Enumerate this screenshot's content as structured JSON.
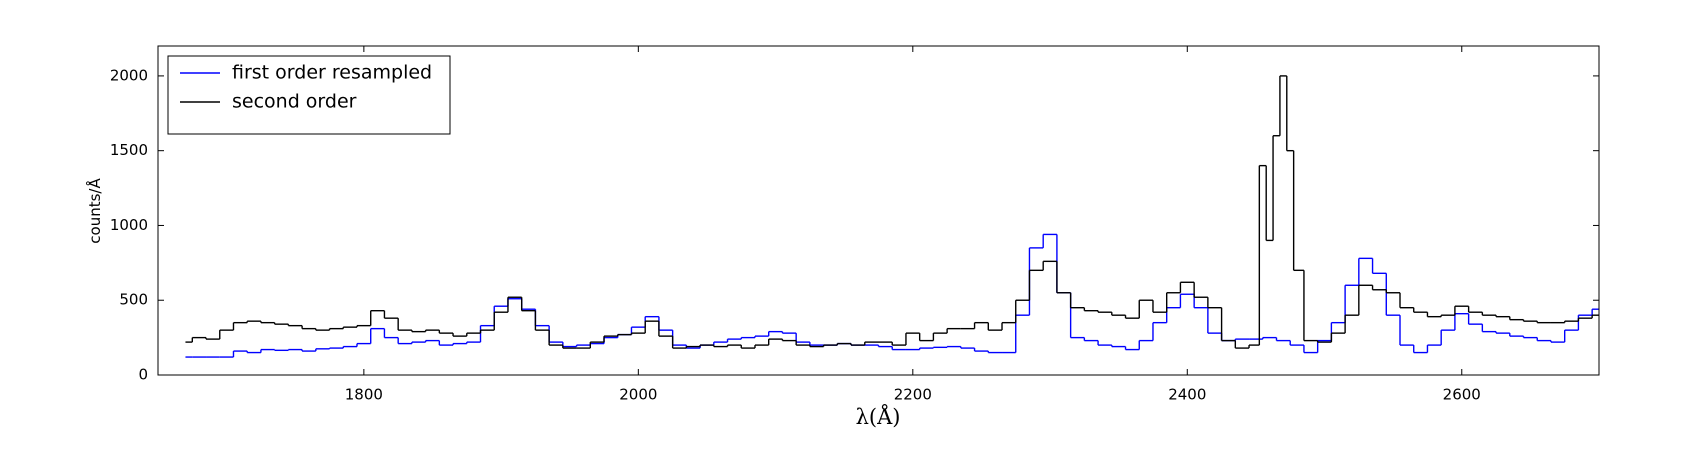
{
  "chart_data": {
    "type": "step",
    "xlabel": "λ(Å)",
    "ylabel": "counts/Å",
    "xlim": [
      1650,
      2700
    ],
    "ylim": [
      0,
      2200
    ],
    "xticks": [
      1800,
      2000,
      2200,
      2400,
      2600
    ],
    "yticks": [
      0,
      500,
      1000,
      1500,
      2000
    ],
    "legend": "upper left",
    "series": [
      {
        "name": "first order resampled",
        "color": "#0000ff",
        "x": [
          1670,
          1680,
          1690,
          1700,
          1710,
          1720,
          1730,
          1740,
          1750,
          1760,
          1770,
          1780,
          1790,
          1800,
          1810,
          1820,
          1830,
          1840,
          1850,
          1860,
          1870,
          1880,
          1890,
          1900,
          1910,
          1920,
          1930,
          1940,
          1950,
          1960,
          1970,
          1980,
          1990,
          2000,
          2010,
          2020,
          2030,
          2040,
          2050,
          2060,
          2070,
          2080,
          2090,
          2100,
          2110,
          2120,
          2130,
          2140,
          2150,
          2160,
          2170,
          2180,
          2190,
          2200,
          2210,
          2220,
          2230,
          2240,
          2250,
          2260,
          2270,
          2280,
          2290,
          2300,
          2310,
          2320,
          2330,
          2340,
          2350,
          2360,
          2370,
          2380,
          2390,
          2400,
          2410,
          2420,
          2430,
          2440,
          2450,
          2460,
          2470,
          2480,
          2490,
          2500,
          2510,
          2520,
          2530,
          2540,
          2550,
          2560,
          2570,
          2580,
          2590,
          2600,
          2610,
          2620,
          2630,
          2640,
          2650,
          2660,
          2670,
          2680,
          2690,
          2700
        ],
        "values": [
          120,
          120,
          120,
          120,
          160,
          150,
          170,
          165,
          170,
          160,
          175,
          180,
          190,
          210,
          310,
          250,
          210,
          220,
          230,
          200,
          210,
          220,
          330,
          460,
          510,
          440,
          330,
          220,
          190,
          200,
          210,
          250,
          270,
          320,
          390,
          300,
          200,
          180,
          200,
          220,
          240,
          250,
          260,
          290,
          280,
          220,
          200,
          200,
          210,
          200,
          200,
          190,
          170,
          170,
          180,
          185,
          190,
          180,
          160,
          150,
          150,
          400,
          850,
          940,
          550,
          250,
          230,
          200,
          190,
          170,
          230,
          350,
          450,
          540,
          450,
          280,
          230,
          240,
          240,
          250,
          230,
          200,
          150,
          230,
          350,
          600,
          780,
          680,
          400,
          200,
          150,
          200,
          300,
          410,
          340,
          290,
          280,
          260,
          250,
          230,
          220,
          300,
          400,
          440
        ]
      },
      {
        "name": "second order",
        "color": "#000000",
        "x": [
          1670,
          1680,
          1690,
          1700,
          1710,
          1720,
          1730,
          1740,
          1750,
          1760,
          1770,
          1780,
          1790,
          1800,
          1810,
          1820,
          1830,
          1840,
          1850,
          1860,
          1870,
          1880,
          1890,
          1900,
          1910,
          1920,
          1930,
          1940,
          1950,
          1960,
          1970,
          1980,
          1990,
          2000,
          2010,
          2020,
          2030,
          2040,
          2050,
          2060,
          2070,
          2080,
          2090,
          2100,
          2110,
          2120,
          2130,
          2140,
          2150,
          2160,
          2170,
          2180,
          2190,
          2200,
          2210,
          2220,
          2230,
          2240,
          2250,
          2260,
          2270,
          2280,
          2290,
          2300,
          2310,
          2320,
          2330,
          2340,
          2350,
          2360,
          2370,
          2380,
          2390,
          2400,
          2410,
          2420,
          2430,
          2440,
          2450,
          2455,
          2460,
          2465,
          2470,
          2475,
          2480,
          2490,
          2500,
          2510,
          2520,
          2530,
          2540,
          2550,
          2560,
          2570,
          2580,
          2590,
          2600,
          2610,
          2620,
          2630,
          2640,
          2650,
          2660,
          2670,
          2680,
          2690,
          2700
        ],
        "values": [
          220,
          250,
          240,
          300,
          350,
          360,
          350,
          340,
          330,
          310,
          300,
          310,
          320,
          330,
          430,
          380,
          300,
          290,
          300,
          280,
          260,
          280,
          300,
          420,
          520,
          430,
          300,
          200,
          180,
          180,
          220,
          260,
          270,
          280,
          360,
          260,
          180,
          190,
          200,
          190,
          200,
          180,
          200,
          240,
          230,
          200,
          190,
          200,
          210,
          200,
          220,
          220,
          200,
          280,
          230,
          280,
          310,
          310,
          350,
          300,
          350,
          500,
          700,
          760,
          550,
          450,
          430,
          420,
          400,
          380,
          500,
          420,
          550,
          620,
          520,
          450,
          230,
          180,
          200,
          1400,
          900,
          1600,
          2000,
          1500,
          700,
          230,
          220,
          280,
          400,
          600,
          570,
          550,
          450,
          420,
          390,
          400,
          460,
          420,
          400,
          390,
          370,
          360,
          350,
          350,
          360,
          380,
          400
        ]
      }
    ]
  }
}
